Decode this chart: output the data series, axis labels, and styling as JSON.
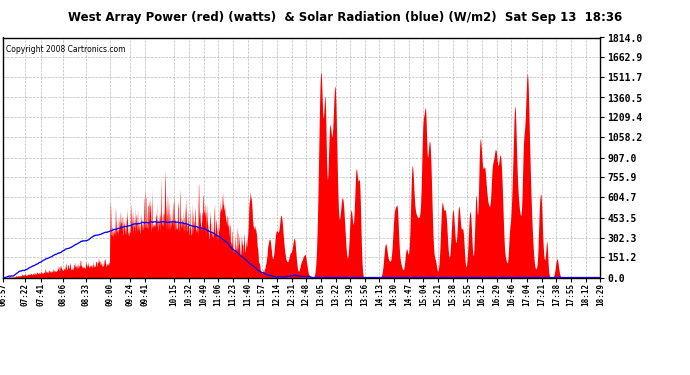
{
  "title": "West Array Power (red) (watts)  & Solar Radiation (blue) (W/m2)  Sat Sep 13  18:36",
  "copyright": "Copyright 2008 Cartronics.com",
  "y_max": 1814.0,
  "y_min": 0.0,
  "y_ticks": [
    0.0,
    151.2,
    302.3,
    453.5,
    604.7,
    755.9,
    907.0,
    1058.2,
    1209.4,
    1360.5,
    1511.7,
    1662.9,
    1814.0
  ],
  "background_color": "#ffffff",
  "grid_color": "#aaaaaa",
  "fill_color": "#ff0000",
  "line_color": "#0000ff",
  "x_labels": [
    "06:57",
    "07:22",
    "07:41",
    "08:06",
    "08:33",
    "09:00",
    "09:24",
    "09:41",
    "10:15",
    "10:32",
    "10:49",
    "11:06",
    "11:23",
    "11:40",
    "11:57",
    "12:14",
    "12:31",
    "12:48",
    "13:05",
    "13:22",
    "13:39",
    "13:56",
    "14:13",
    "14:30",
    "14:47",
    "15:04",
    "15:21",
    "15:38",
    "15:55",
    "16:12",
    "16:29",
    "16:46",
    "17:04",
    "17:21",
    "17:38",
    "17:55",
    "18:12",
    "18:29"
  ],
  "x_label_times": [
    417,
    442,
    461,
    486,
    513,
    540,
    564,
    581,
    615,
    632,
    649,
    666,
    683,
    700,
    717,
    734,
    751,
    768,
    785,
    802,
    819,
    836,
    853,
    870,
    887,
    904,
    921,
    938,
    955,
    972,
    989,
    1006,
    1024,
    1041,
    1058,
    1075,
    1092,
    1109
  ]
}
